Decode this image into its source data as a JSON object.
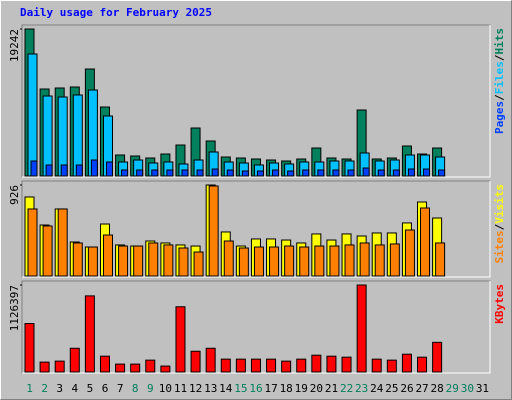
{
  "chart_data": [
    {
      "type": "bar",
      "title": "Daily usage for February 2025",
      "categories": [
        "1",
        "2",
        "3",
        "4",
        "5",
        "6",
        "7",
        "8",
        "9",
        "10",
        "11",
        "12",
        "13",
        "14",
        "15",
        "16",
        "17",
        "18",
        "19",
        "20",
        "21",
        "22",
        "23",
        "24",
        "25",
        "26",
        "27",
        "28",
        "29",
        "30",
        "31"
      ],
      "category_colors": [
        "#00805c",
        "#00805c",
        "#000000",
        "#000000",
        "#000000",
        "#000000",
        "#000000",
        "#00805c",
        "#00805c",
        "#000000",
        "#000000",
        "#000000",
        "#000000",
        "#000000",
        "#00805c",
        "#00805c",
        "#000000",
        "#000000",
        "#000000",
        "#000000",
        "#000000",
        "#00805c",
        "#00805c",
        "#000000",
        "#000000",
        "#000000",
        "#000000",
        "#000000",
        "#00805c",
        "#00805c",
        "#000000"
      ],
      "legend_separator": "/",
      "ylim": [
        0,
        19242
      ],
      "yticks": [
        19242
      ],
      "series": [
        {
          "name": "Hits",
          "color": "#00805c",
          "values": [
            19242,
            11388,
            11519,
            11650,
            14006,
            9032,
            2749,
            2618,
            2356,
            2880,
            4058,
            6283,
            4581,
            2487,
            2356,
            2225,
            2094,
            1964,
            2225,
            3665,
            2356,
            2225,
            8639,
            2225,
            2356,
            3927,
            2880,
            3665,
            null,
            null,
            null
          ]
        },
        {
          "name": "Files",
          "color": "#00c0ff",
          "values": [
            15970,
            10472,
            10341,
            10603,
            11257,
            7854,
            1833,
            2094,
            1702,
            1833,
            1571,
            2094,
            3142,
            1833,
            1702,
            1440,
            1702,
            1571,
            1833,
            1833,
            1963,
            1963,
            3011,
            1963,
            2094,
            2749,
            2749,
            2487,
            null,
            null,
            null
          ]
        },
        {
          "name": "Pages",
          "color": "#0040ff",
          "values": [
            1963,
            1440,
            1440,
            1440,
            2094,
            1833,
            785,
            785,
            785,
            785,
            785,
            785,
            916,
            785,
            654,
            654,
            785,
            654,
            785,
            785,
            785,
            785,
            1047,
            785,
            785,
            916,
            916,
            785,
            null,
            null,
            null
          ]
        }
      ]
    },
    {
      "type": "bar",
      "ylim": [
        0,
        926
      ],
      "yticks": [
        926
      ],
      "series": [
        {
          "name": "Visits",
          "color": "#ffff00",
          "values": [
            804,
            519,
            682,
            346,
            295,
            529,
            316,
            305,
            356,
            336,
            316,
            305,
            926,
            448,
            305,
            377,
            377,
            366,
            336,
            428,
            366,
            428,
            407,
            438,
            438,
            540,
            753,
            590,
            null,
            null,
            null
          ]
        },
        {
          "name": "Sites",
          "color": "#ff8000",
          "values": [
            682,
            509,
            682,
            336,
            295,
            417,
            305,
            305,
            336,
            316,
            285,
            244,
            916,
            356,
            285,
            295,
            295,
            305,
            295,
            305,
            305,
            316,
            336,
            316,
            326,
            468,
            692,
            336,
            null,
            null,
            null
          ]
        }
      ]
    },
    {
      "type": "bar",
      "ylim": [
        0,
        1126397
      ],
      "yticks": [
        1126397
      ],
      "series": [
        {
          "name": "KBytes",
          "color": "#ff0000",
          "values": [
            627200,
            128000,
            140800,
            307200,
            985600,
            204800,
            102400,
            102400,
            153600,
            76800,
            844800,
            268800,
            307200,
            166400,
            166400,
            166400,
            166400,
            140800,
            166400,
            217600,
            204800,
            192000,
            1126397,
            166400,
            153600,
            230400,
            192000,
            384000,
            null,
            null,
            null
          ]
        }
      ]
    }
  ]
}
